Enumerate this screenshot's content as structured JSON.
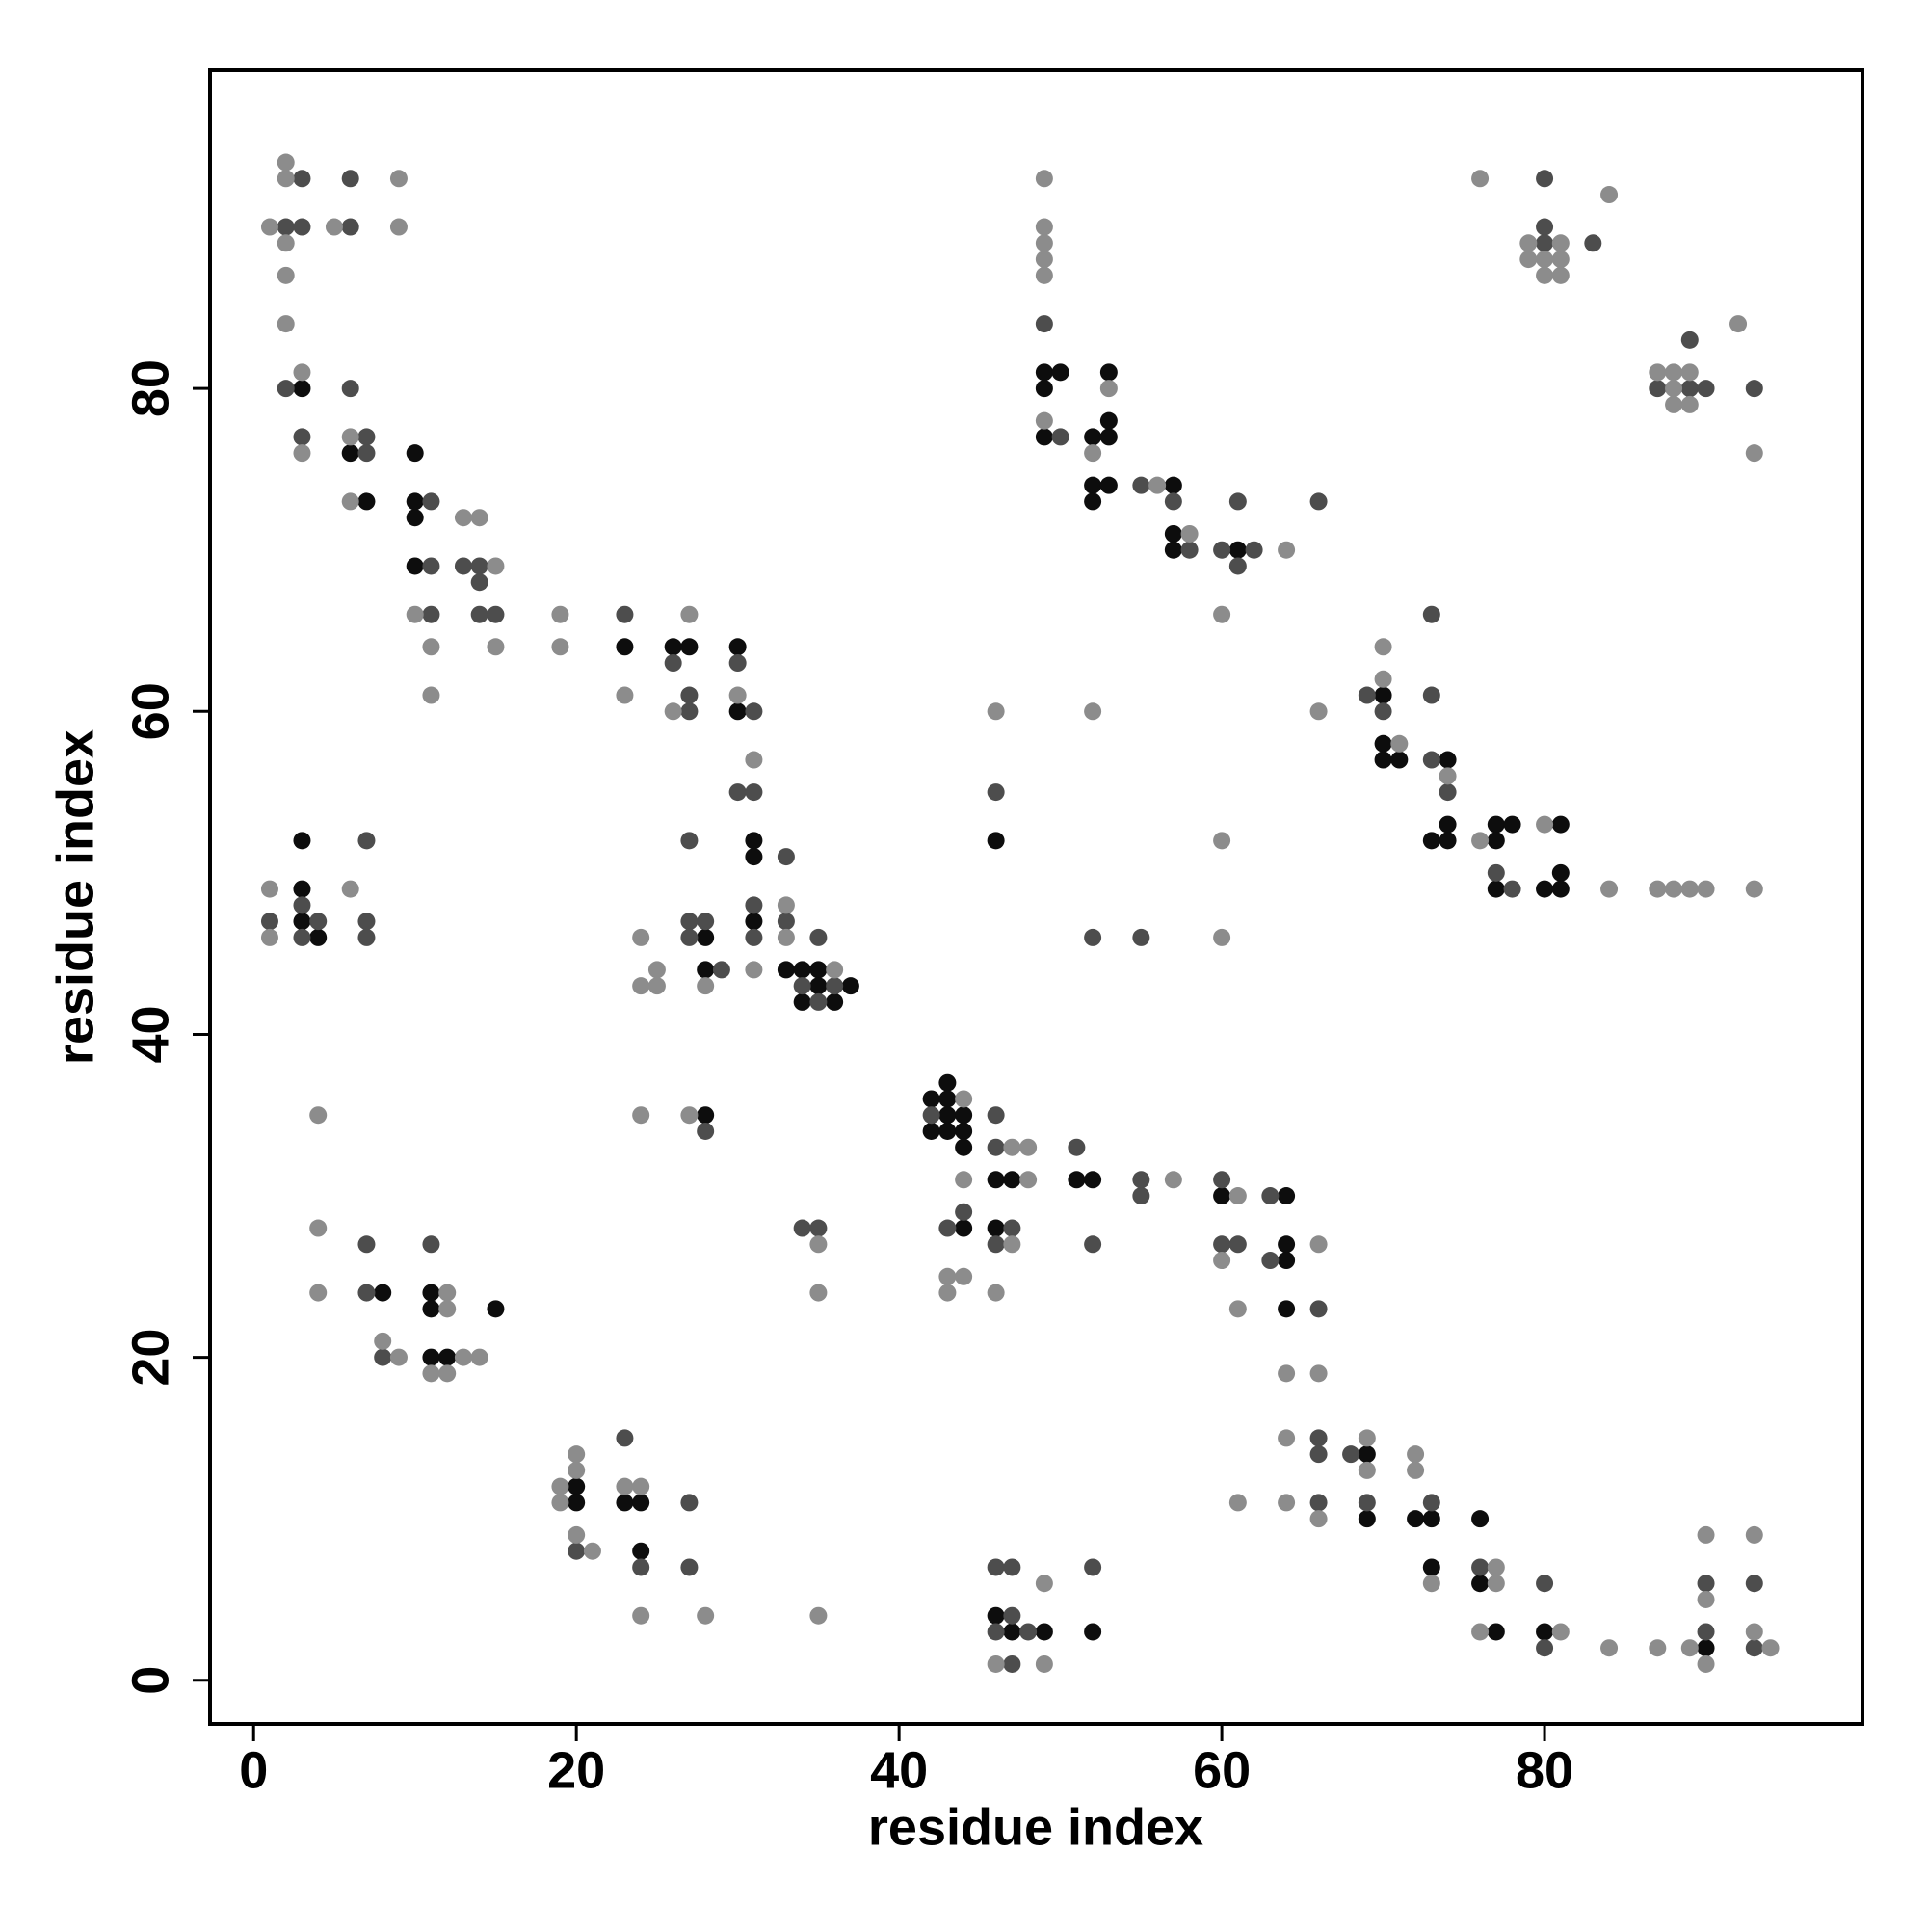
{
  "chart_data": {
    "type": "scatter",
    "xlabel": "residue index",
    "ylabel": "residue index",
    "xlim": [
      -2.7,
      99.7
    ],
    "ylim": [
      -2.7,
      99.7
    ],
    "xticks": [
      0,
      20,
      40,
      60,
      80
    ],
    "yticks": [
      0,
      20,
      40,
      60,
      80
    ],
    "series": [
      {
        "color": "#0d0d0d",
        "x": [
          3,
          6,
          7,
          10,
          10,
          10,
          10,
          23,
          26,
          27,
          30,
          30,
          31,
          31,
          31,
          28,
          28,
          33,
          34,
          35,
          35,
          37,
          34,
          36,
          3,
          3,
          3,
          4,
          28,
          8,
          11,
          11,
          11,
          12,
          15,
          20,
          20,
          23,
          24,
          24,
          43,
          42,
          43,
          43,
          44,
          42,
          43,
          44,
          44,
          46,
          47,
          44,
          46,
          51,
          52,
          60,
          64,
          64,
          64,
          64,
          69,
          69,
          72,
          73,
          73,
          76,
          76,
          77,
          80,
          90,
          46,
          47,
          49,
          52,
          49,
          50,
          49,
          49,
          53,
          52,
          53,
          53,
          52,
          53,
          52,
          57,
          57,
          57,
          61,
          46,
          70,
          70,
          70,
          71,
          74,
          74,
          73,
          74,
          77,
          78,
          77,
          77,
          81,
          81,
          80,
          81
        ],
        "values": [
          80,
          76,
          73,
          76,
          73,
          72,
          69,
          64,
          64,
          64,
          64,
          60,
          52,
          51,
          47,
          46,
          44,
          44,
          44,
          44,
          43,
          43,
          42,
          42,
          52,
          49,
          47,
          46,
          35,
          24,
          24,
          23,
          20,
          20,
          23,
          12,
          11,
          11,
          11,
          8,
          37,
          36,
          36,
          35,
          35,
          34,
          34,
          34,
          33,
          31,
          31,
          28,
          28,
          31,
          31,
          30,
          30,
          27,
          26,
          23,
          14,
          10,
          10,
          10,
          7,
          10,
          6,
          3,
          3,
          2,
          4,
          3,
          3,
          3,
          81,
          81,
          80,
          77,
          81,
          77,
          77,
          78,
          74,
          74,
          73,
          74,
          71,
          70,
          70,
          52,
          61,
          58,
          57,
          57,
          57,
          53,
          52,
          52,
          53,
          53,
          52,
          49,
          53,
          50,
          49,
          49
        ]
      },
      {
        "color": "#4d4d4d",
        "x": [
          2,
          3,
          6,
          3,
          6,
          2,
          6,
          3,
          7,
          7,
          11,
          11,
          11,
          13,
          14,
          14,
          14,
          15,
          23,
          26,
          27,
          27,
          30,
          31,
          30,
          31,
          27,
          31,
          31,
          33,
          33,
          27,
          28,
          27,
          29,
          34,
          36,
          35,
          35,
          1,
          3,
          4,
          3,
          7,
          7,
          7,
          28,
          7,
          7,
          8,
          11,
          34,
          35,
          20,
          23,
          24,
          27,
          27,
          42,
          46,
          46,
          44,
          43,
          47,
          46,
          51,
          55,
          55,
          52,
          60,
          60,
          61,
          63,
          63,
          66,
          66,
          66,
          66,
          68,
          69,
          73,
          76,
          80,
          80,
          90,
          90,
          93,
          93,
          46,
          47,
          47,
          46,
          48,
          47,
          52,
          49,
          50,
          55,
          57,
          58,
          60,
          61,
          62,
          61,
          66,
          46,
          52,
          55,
          69,
          70,
          73,
          73,
          73,
          74,
          77,
          78,
          80,
          80,
          80,
          83,
          89,
          87,
          89,
          90,
          93
        ],
        "values": [
          90,
          90,
          90,
          93,
          93,
          80,
          80,
          77,
          77,
          76,
          73,
          69,
          66,
          69,
          69,
          68,
          66,
          66,
          66,
          63,
          61,
          60,
          63,
          60,
          55,
          55,
          52,
          48,
          46,
          51,
          47,
          47,
          47,
          46,
          44,
          43,
          43,
          42,
          46,
          47,
          48,
          47,
          46,
          52,
          47,
          46,
          34,
          27,
          24,
          20,
          27,
          28,
          28,
          8,
          15,
          7,
          11,
          7,
          35,
          35,
          33,
          29,
          28,
          28,
          27,
          33,
          31,
          30,
          27,
          31,
          27,
          27,
          30,
          26,
          23,
          15,
          14,
          11,
          14,
          11,
          11,
          7,
          6,
          2,
          3,
          6,
          6,
          2,
          7,
          7,
          4,
          3,
          3,
          1,
          7,
          84,
          77,
          74,
          73,
          70,
          70,
          69,
          70,
          73,
          73,
          55,
          46,
          46,
          61,
          60,
          66,
          61,
          57,
          55,
          50,
          49,
          93,
          90,
          89,
          89,
          83,
          80,
          80,
          80,
          80
        ]
      },
      {
        "color": "#8c8c8c",
        "x": [
          2,
          2,
          9,
          1,
          5,
          9,
          2,
          2,
          2,
          3,
          3,
          6,
          6,
          10,
          11,
          11,
          13,
          14,
          15,
          15,
          19,
          19,
          23,
          27,
          26,
          30,
          31,
          31,
          33,
          33,
          28,
          24,
          25,
          24,
          25,
          36,
          1,
          1,
          6,
          4,
          24,
          27,
          4,
          4,
          8,
          9,
          12,
          12,
          11,
          12,
          13,
          14,
          35,
          35,
          19,
          20,
          20,
          19,
          20,
          21,
          23,
          24,
          24,
          28,
          35,
          44,
          47,
          48,
          44,
          48,
          47,
          43,
          44,
          43,
          46,
          57,
          61,
          60,
          61,
          66,
          64,
          66,
          64,
          64,
          66,
          61,
          69,
          69,
          72,
          72,
          73,
          77,
          77,
          76,
          81,
          84,
          87,
          89,
          90,
          90,
          90,
          93,
          93,
          94,
          46,
          49,
          49,
          49,
          49,
          49,
          49,
          49,
          49,
          53,
          52,
          56,
          58,
          64,
          60,
          46,
          52,
          60,
          60,
          66,
          70,
          70,
          71,
          74,
          76,
          80,
          84,
          87,
          88,
          89,
          90,
          93,
          76,
          84,
          79,
          81,
          79,
          80,
          81,
          80,
          81,
          87,
          88,
          89,
          88,
          88,
          89,
          92,
          93
        ],
        "values": [
          94,
          93,
          93,
          90,
          90,
          90,
          89,
          87,
          84,
          81,
          76,
          77,
          73,
          66,
          64,
          61,
          72,
          72,
          69,
          64,
          66,
          64,
          61,
          66,
          60,
          61,
          57,
          44,
          48,
          46,
          43,
          46,
          44,
          43,
          43,
          44,
          49,
          46,
          49,
          35,
          35,
          35,
          28,
          24,
          21,
          20,
          24,
          23,
          19,
          19,
          20,
          20,
          27,
          24,
          12,
          14,
          13,
          11,
          9,
          8,
          12,
          12,
          4,
          4,
          4,
          36,
          33,
          33,
          31,
          31,
          27,
          25,
          25,
          24,
          24,
          31,
          30,
          26,
          23,
          27,
          19,
          19,
          15,
          11,
          10,
          11,
          15,
          13,
          14,
          13,
          6,
          7,
          6,
          3,
          3,
          2,
          2,
          2,
          5,
          9,
          1,
          9,
          3,
          2,
          1,
          6,
          1,
          93,
          90,
          89,
          88,
          87,
          78,
          80,
          76,
          74,
          71,
          70,
          66,
          60,
          60,
          52,
          46,
          60,
          64,
          62,
          58,
          56,
          52,
          53,
          49,
          49,
          49,
          49,
          49,
          49,
          93,
          92,
          89,
          89,
          88,
          88,
          88,
          87,
          87,
          81,
          81,
          81,
          80,
          79,
          79,
          84,
          76
        ]
      }
    ]
  }
}
